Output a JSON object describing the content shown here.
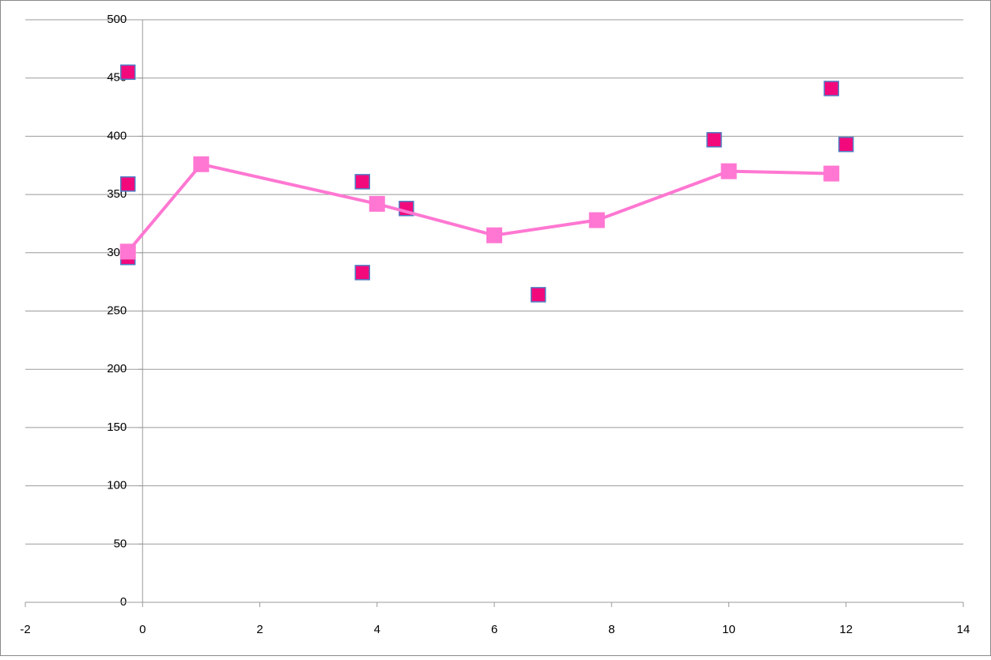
{
  "chart_data": {
    "type": "scatter",
    "xlim": [
      -2,
      14
    ],
    "xticks": [
      -2,
      0,
      2,
      4,
      6,
      8,
      10,
      12,
      14
    ],
    "ylim": [
      0,
      500
    ],
    "yticks": [
      0,
      50,
      100,
      150,
      200,
      250,
      300,
      350,
      400,
      450,
      500
    ],
    "grid": true,
    "series": [
      {
        "color": "#f20a7c",
        "mode": "markers",
        "x": [
          -0.25,
          -0.25,
          -0.25,
          3.75,
          3.75,
          4.5,
          6.75,
          9.75,
          11.75,
          12
        ],
        "values": [
          455,
          359,
          296,
          361,
          283,
          338,
          264,
          397,
          441,
          393
        ]
      },
      {
        "color": "#ff77d2",
        "mode": "lines+markers",
        "x": [
          -0.25,
          1,
          4,
          6,
          7.75,
          10,
          11.75
        ],
        "values": [
          301,
          376,
          342,
          315,
          328,
          370,
          368
        ]
      }
    ]
  }
}
